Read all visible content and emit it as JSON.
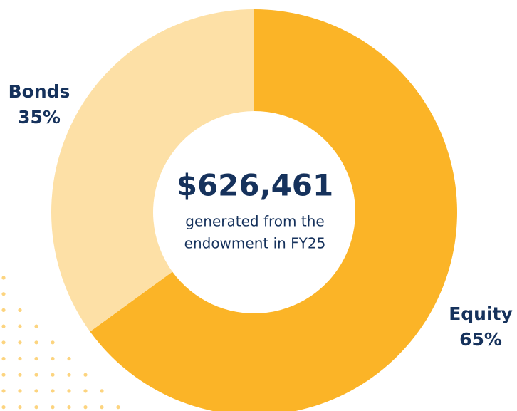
{
  "chart_data": {
    "type": "donut",
    "categories": [
      "Equity",
      "Bonds"
    ],
    "values": [
      65,
      35
    ],
    "value_labels": [
      "65%",
      "35%"
    ],
    "colors": [
      "#fbb427",
      "#fde0a6"
    ],
    "center_value": "$626,461",
    "center_text": [
      "generated from the",
      "endowment in FY25"
    ]
  }
}
